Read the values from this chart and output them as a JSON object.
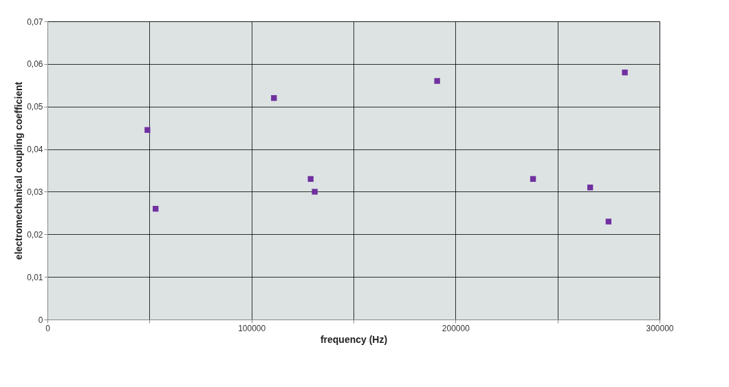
{
  "chart_data": {
    "type": "scatter",
    "xlabel": "frequency (Hz)",
    "ylabel": "electromechanical coupling coefficient",
    "x": [
      49000,
      53000,
      111000,
      129000,
      131000,
      191000,
      238000,
      266000,
      275000,
      283000
    ],
    "series": [
      {
        "color": "#7030a0",
        "values": [
          0.0445,
          0.026,
          0.052,
          0.033,
          0.03,
          0.056,
          0.033,
          0.031,
          0.023,
          0.058
        ]
      }
    ],
    "xlim": [
      0,
      300000
    ],
    "xticks": [
      0,
      {
        "value": 50000,
        "label": null
      },
      100000,
      {
        "value": 150000,
        "label": null
      },
      200000,
      {
        "value": 250000,
        "label": null
      },
      300000
    ],
    "ylim": [
      0,
      0.07
    ],
    "yticks": [
      0,
      {
        "value": 0.01,
        "label": "0,01"
      },
      {
        "value": 0.02,
        "label": "0,02"
      },
      {
        "value": 0.03,
        "label": "0,03"
      },
      {
        "value": 0.04,
        "label": "0,04"
      },
      {
        "value": 0.05,
        "label": "0,05"
      },
      {
        "value": 0.06,
        "label": "0,06"
      },
      {
        "value": 0.07,
        "label": "0,07"
      }
    ],
    "grid": true,
    "marker": "square"
  }
}
